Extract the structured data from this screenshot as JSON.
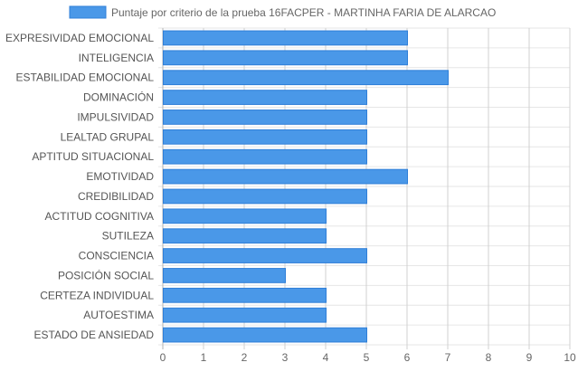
{
  "chart_data": {
    "type": "bar",
    "orientation": "horizontal",
    "legend": {
      "position": "top",
      "label": "Puntaje por criterio de la prueba 16FACPER - MARTINHA FARIA DE ALARCAO"
    },
    "categories": [
      "EXPRESIVIDAD EMOCIONAL",
      "INTELIGENCIA",
      "ESTABILIDAD EMOCIONAL",
      "DOMINACIÓN",
      "IMPULSIVIDAD",
      "LEALTAD GRUPAL",
      "APTITUD SITUACIONAL",
      "EMOTIVIDAD",
      "CREDIBILIDAD",
      "ACTITUD COGNITIVA",
      "SUTILEZA",
      "CONSCIENCIA",
      "POSICIÓN SOCIAL",
      "CERTEZA INDIVIDUAL",
      "AUTOESTIMA",
      "ESTADO DE ANSIEDAD"
    ],
    "series": [
      {
        "name": "Puntaje por criterio de la prueba 16FACPER - MARTINHA FARIA DE ALARCAO",
        "values": [
          6,
          6,
          7,
          5,
          5,
          5,
          5,
          6,
          5,
          4,
          4,
          5,
          3,
          4,
          4,
          5
        ],
        "color": "#4a98e8",
        "border_color": "#2f7fd8"
      }
    ],
    "xlim": [
      0,
      10
    ],
    "xticks": [
      "0",
      "1",
      "2",
      "3",
      "4",
      "5",
      "6",
      "7",
      "8",
      "9",
      "10"
    ],
    "grid": true
  }
}
